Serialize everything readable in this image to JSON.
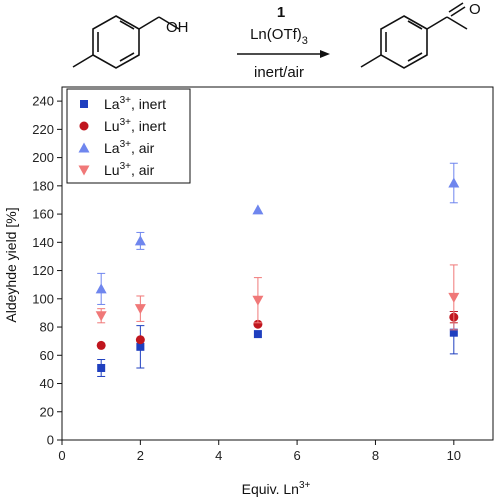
{
  "scheme": {
    "reactant_label": "OH",
    "product_label": "O",
    "catalyst_number": "1",
    "reagent_base": "Ln(OTf)",
    "reagent_subscript": "3",
    "conditions": "inert/air"
  },
  "chart_data": {
    "type": "scatter",
    "xlabel": "Equiv. Ln",
    "xlabel_superscript": "3+",
    "ylabel": "Aldeyhde yield [%]",
    "xlim": [
      0,
      11
    ],
    "ylim": [
      0,
      250
    ],
    "xticks": [
      "0",
      "2",
      "4",
      "6",
      "8",
      "10"
    ],
    "yticks": [
      "0",
      "20",
      "40",
      "60",
      "80",
      "100",
      "120",
      "140",
      "160",
      "180",
      "200",
      "220",
      "240"
    ],
    "grid": false,
    "legend_position": "top-left",
    "series": [
      {
        "name": "La, inert",
        "legend_ion": "La",
        "legend_charge": "3+",
        "legend_cond": ", inert",
        "marker": "square",
        "color": "#1f3fbf",
        "x": [
          1,
          2,
          5,
          10
        ],
        "y": [
          51,
          66,
          75,
          76
        ],
        "err": [
          6,
          15,
          0,
          15
        ]
      },
      {
        "name": "Lu, inert",
        "legend_ion": "Lu",
        "legend_charge": "3+",
        "legend_cond": ", inert",
        "marker": "circle",
        "color": "#c0161e",
        "x": [
          1,
          2,
          5,
          10
        ],
        "y": [
          67,
          71,
          82,
          87
        ],
        "err": [
          0,
          0,
          0,
          4
        ]
      },
      {
        "name": "La, air",
        "legend_ion": "La",
        "legend_charge": "3+",
        "legend_cond": ", air",
        "marker": "triangle-up",
        "color": "#6f86ee",
        "x": [
          1,
          2,
          5,
          10
        ],
        "y": [
          107,
          141,
          163,
          182
        ],
        "err": [
          11,
          6,
          0,
          14
        ]
      },
      {
        "name": "Lu, air",
        "legend_ion": "Lu",
        "legend_charge": "3+",
        "legend_cond": ", air",
        "marker": "triangle-down",
        "color": "#f07878",
        "x": [
          1,
          2,
          5,
          10
        ],
        "y": [
          88,
          93,
          99,
          101
        ],
        "err": [
          5,
          9,
          16,
          23
        ]
      }
    ]
  }
}
